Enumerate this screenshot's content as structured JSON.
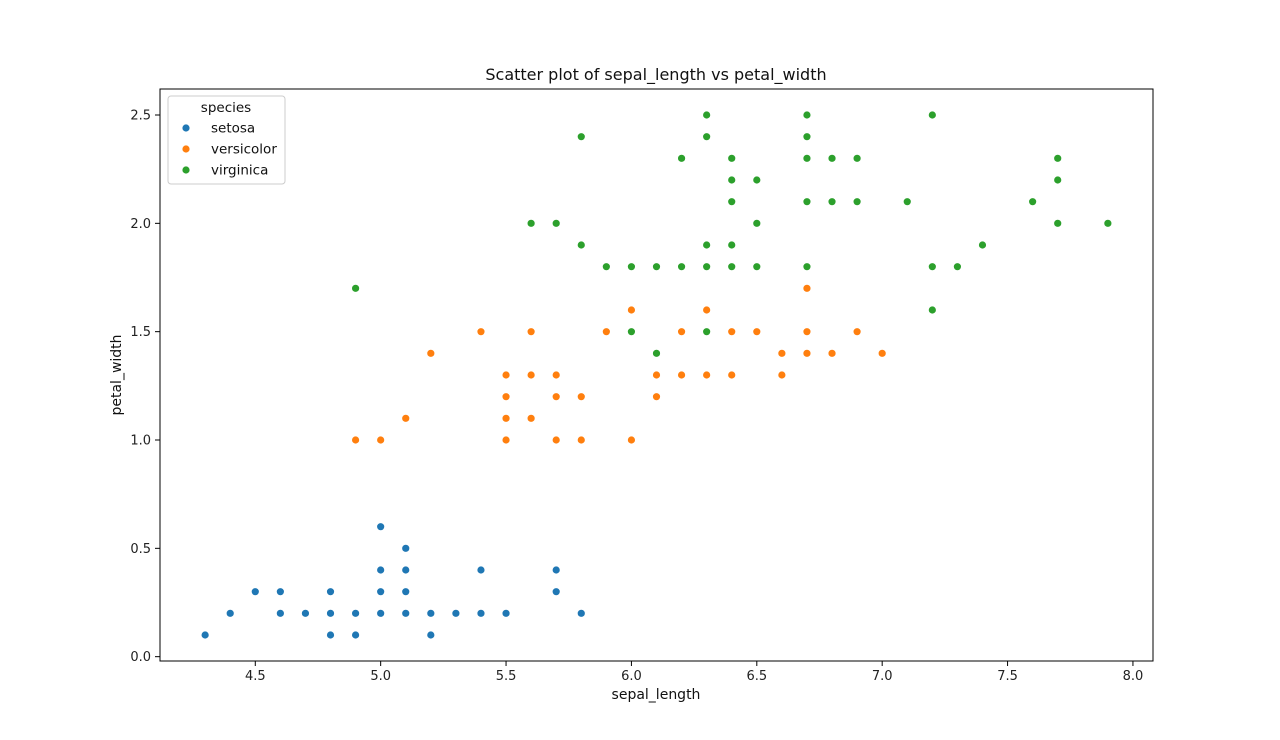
{
  "chart_data": {
    "type": "scatter",
    "title": "Scatter plot of sepal_length vs petal_width",
    "xlabel": "sepal_length",
    "ylabel": "petal_width",
    "xlim": [
      4.12,
      8.08
    ],
    "ylim": [
      -0.02,
      2.62
    ],
    "xticks": [
      "4.5",
      "5.0",
      "5.5",
      "6.0",
      "6.5",
      "7.0",
      "7.5",
      "8.0"
    ],
    "yticks": [
      "0.0",
      "0.5",
      "1.0",
      "1.5",
      "2.0",
      "2.5"
    ],
    "grid": false,
    "legend": {
      "title": "species",
      "placement": "top-left"
    },
    "series": [
      {
        "name": "setosa",
        "color": "#1f77b4",
        "points": [
          [
            4.3,
            0.1
          ],
          [
            4.4,
            0.2
          ],
          [
            4.5,
            0.3
          ],
          [
            4.6,
            0.3
          ],
          [
            4.6,
            0.2
          ],
          [
            4.7,
            0.2
          ],
          [
            4.8,
            0.3
          ],
          [
            4.8,
            0.2
          ],
          [
            4.8,
            0.1
          ],
          [
            4.9,
            0.2
          ],
          [
            4.9,
            0.1
          ],
          [
            5.0,
            0.6
          ],
          [
            5.0,
            0.4
          ],
          [
            5.0,
            0.3
          ],
          [
            5.0,
            0.2
          ],
          [
            5.1,
            0.5
          ],
          [
            5.1,
            0.4
          ],
          [
            5.1,
            0.3
          ],
          [
            5.1,
            0.2
          ],
          [
            5.2,
            0.2
          ],
          [
            5.2,
            0.1
          ],
          [
            5.3,
            0.2
          ],
          [
            5.4,
            0.4
          ],
          [
            5.4,
            0.2
          ],
          [
            5.5,
            0.2
          ],
          [
            5.7,
            0.4
          ],
          [
            5.7,
            0.3
          ],
          [
            5.8,
            0.2
          ]
        ]
      },
      {
        "name": "versicolor",
        "color": "#ff7f0e",
        "points": [
          [
            4.9,
            1.0
          ],
          [
            5.0,
            1.0
          ],
          [
            5.1,
            1.1
          ],
          [
            5.2,
            1.4
          ],
          [
            5.4,
            1.5
          ],
          [
            5.5,
            1.3
          ],
          [
            5.5,
            1.2
          ],
          [
            5.5,
            1.1
          ],
          [
            5.5,
            1.0
          ],
          [
            5.6,
            1.5
          ],
          [
            5.6,
            1.3
          ],
          [
            5.6,
            1.1
          ],
          [
            5.7,
            1.3
          ],
          [
            5.7,
            1.2
          ],
          [
            5.7,
            1.0
          ],
          [
            5.8,
            1.2
          ],
          [
            5.8,
            1.0
          ],
          [
            5.9,
            1.5
          ],
          [
            6.0,
            1.6
          ],
          [
            6.0,
            1.0
          ],
          [
            6.1,
            1.3
          ],
          [
            6.1,
            1.2
          ],
          [
            6.2,
            1.5
          ],
          [
            6.2,
            1.3
          ],
          [
            6.3,
            1.6
          ],
          [
            6.3,
            1.3
          ],
          [
            6.4,
            1.5
          ],
          [
            6.4,
            1.3
          ],
          [
            6.5,
            1.5
          ],
          [
            6.6,
            1.4
          ],
          [
            6.6,
            1.3
          ],
          [
            6.7,
            1.7
          ],
          [
            6.7,
            1.5
          ],
          [
            6.7,
            1.4
          ],
          [
            6.8,
            1.4
          ],
          [
            6.9,
            1.5
          ],
          [
            7.0,
            1.4
          ]
        ]
      },
      {
        "name": "virginica",
        "color": "#2ca02c",
        "points": [
          [
            4.9,
            1.7
          ],
          [
            5.6,
            2.0
          ],
          [
            5.7,
            2.0
          ],
          [
            5.8,
            2.4
          ],
          [
            5.8,
            1.9
          ],
          [
            5.9,
            1.8
          ],
          [
            6.0,
            1.8
          ],
          [
            6.0,
            1.5
          ],
          [
            6.1,
            1.8
          ],
          [
            6.1,
            1.4
          ],
          [
            6.2,
            2.3
          ],
          [
            6.2,
            1.8
          ],
          [
            6.3,
            2.5
          ],
          [
            6.3,
            2.4
          ],
          [
            6.3,
            1.9
          ],
          [
            6.3,
            1.8
          ],
          [
            6.3,
            1.5
          ],
          [
            6.4,
            2.3
          ],
          [
            6.4,
            2.2
          ],
          [
            6.4,
            2.1
          ],
          [
            6.4,
            1.9
          ],
          [
            6.4,
            1.8
          ],
          [
            6.5,
            2.2
          ],
          [
            6.5,
            2.0
          ],
          [
            6.5,
            1.8
          ],
          [
            6.7,
            2.5
          ],
          [
            6.7,
            2.4
          ],
          [
            6.7,
            2.3
          ],
          [
            6.7,
            2.1
          ],
          [
            6.7,
            1.8
          ],
          [
            6.8,
            2.3
          ],
          [
            6.8,
            2.1
          ],
          [
            6.9,
            2.3
          ],
          [
            6.9,
            2.1
          ],
          [
            7.1,
            2.1
          ],
          [
            7.2,
            2.5
          ],
          [
            7.2,
            1.8
          ],
          [
            7.2,
            1.6
          ],
          [
            7.3,
            1.8
          ],
          [
            7.4,
            1.9
          ],
          [
            7.6,
            2.1
          ],
          [
            7.7,
            2.3
          ],
          [
            7.7,
            2.2
          ],
          [
            7.7,
            2.0
          ],
          [
            7.9,
            2.0
          ]
        ]
      }
    ]
  }
}
